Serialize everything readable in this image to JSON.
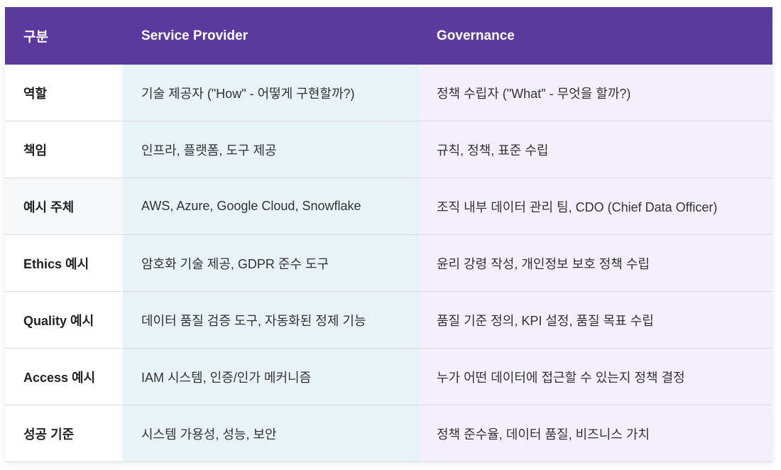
{
  "table": {
    "headers": [
      "구분",
      "Service Provider",
      "Governance"
    ],
    "rows": [
      [
        "역할",
        "기술 제공자 (\"How\" - 어떻게 구현할까?)",
        "정책 수립자 (\"What\" - 무엇을 할까?)"
      ],
      [
        "책임",
        "인프라, 플랫폼, 도구 제공",
        "규칙, 정책, 표준 수립"
      ],
      [
        "예시 주체",
        "AWS, Azure, Google Cloud, Snowflake",
        "조직 내부 데이터 관리 팀, CDO (Chief Data Officer)"
      ],
      [
        "Ethics 예시",
        "암호화 기술 제공, GDPR 준수 도구",
        "윤리 강령 작성, 개인정보 보호 정책 수립"
      ],
      [
        "Quality 예시",
        "데이터 품질 검증 도구, 자동화된 정제 기능",
        "품질 기준 정의, KPI 설정, 품질 목표 수립"
      ],
      [
        "Access 예시",
        "IAM 시스템, 인증/인가 메커니즘",
        "누가 어떤 데이터에 접근할 수 있는지 정책 결정"
      ],
      [
        "성공 기준",
        "시스템 가용성, 성능, 보안",
        "정책 준수율, 데이터 품질, 비즈니스 가치"
      ]
    ]
  },
  "colors": {
    "header": "#5a3a9c",
    "provider_col": "#e8f3f8",
    "governance_col": "#f4effd"
  }
}
